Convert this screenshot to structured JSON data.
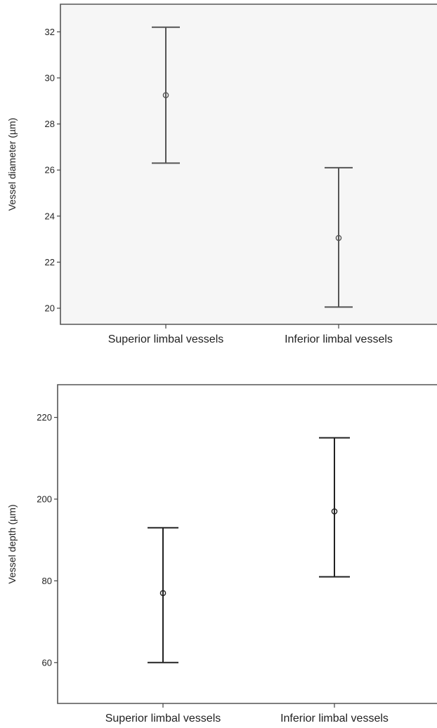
{
  "chart_data": [
    {
      "type": "errorbar",
      "title": "",
      "xlabel": "",
      "ylabel": "Vessel diameter (µm)",
      "categories": [
        "Superior limbal vessels",
        "Inferior limbal vessels"
      ],
      "series": [
        {
          "mean": [
            29.25,
            23.05
          ],
          "lower": [
            26.3,
            20.05
          ],
          "upper": [
            32.2,
            26.1
          ]
        }
      ],
      "yticks": [
        20,
        22,
        24,
        26,
        28,
        30,
        32
      ],
      "ytick_labels": [
        "20",
        "22",
        "24",
        "26",
        "28",
        "30",
        "32"
      ],
      "ylim": [
        19.3,
        33.2
      ],
      "plot_background": "#f6f6f6",
      "bar_color": "#555555",
      "grid": false
    },
    {
      "type": "errorbar",
      "title": "",
      "xlabel": "",
      "ylabel": "Vessel depth (µm)",
      "categories": [
        "Superior limbal vessels",
        "Inferior limbal vessels"
      ],
      "series": [
        {
          "mean": [
            2.35,
            3.35
          ],
          "lower": [
            1.5,
            2.55
          ],
          "upper": [
            3.15,
            4.25
          ]
        }
      ],
      "yticks": [
        2,
        3,
        4
      ],
      "ytick_labels": [
        "60",
        "80",
        "200",
        "220"
      ],
      "ytick_values": [
        1.5,
        2.5,
        3.5,
        4.5
      ],
      "ylim": [
        1.0,
        4.9
      ],
      "plot_background": "#ffffff",
      "bar_color": "#222222",
      "grid": false
    }
  ]
}
